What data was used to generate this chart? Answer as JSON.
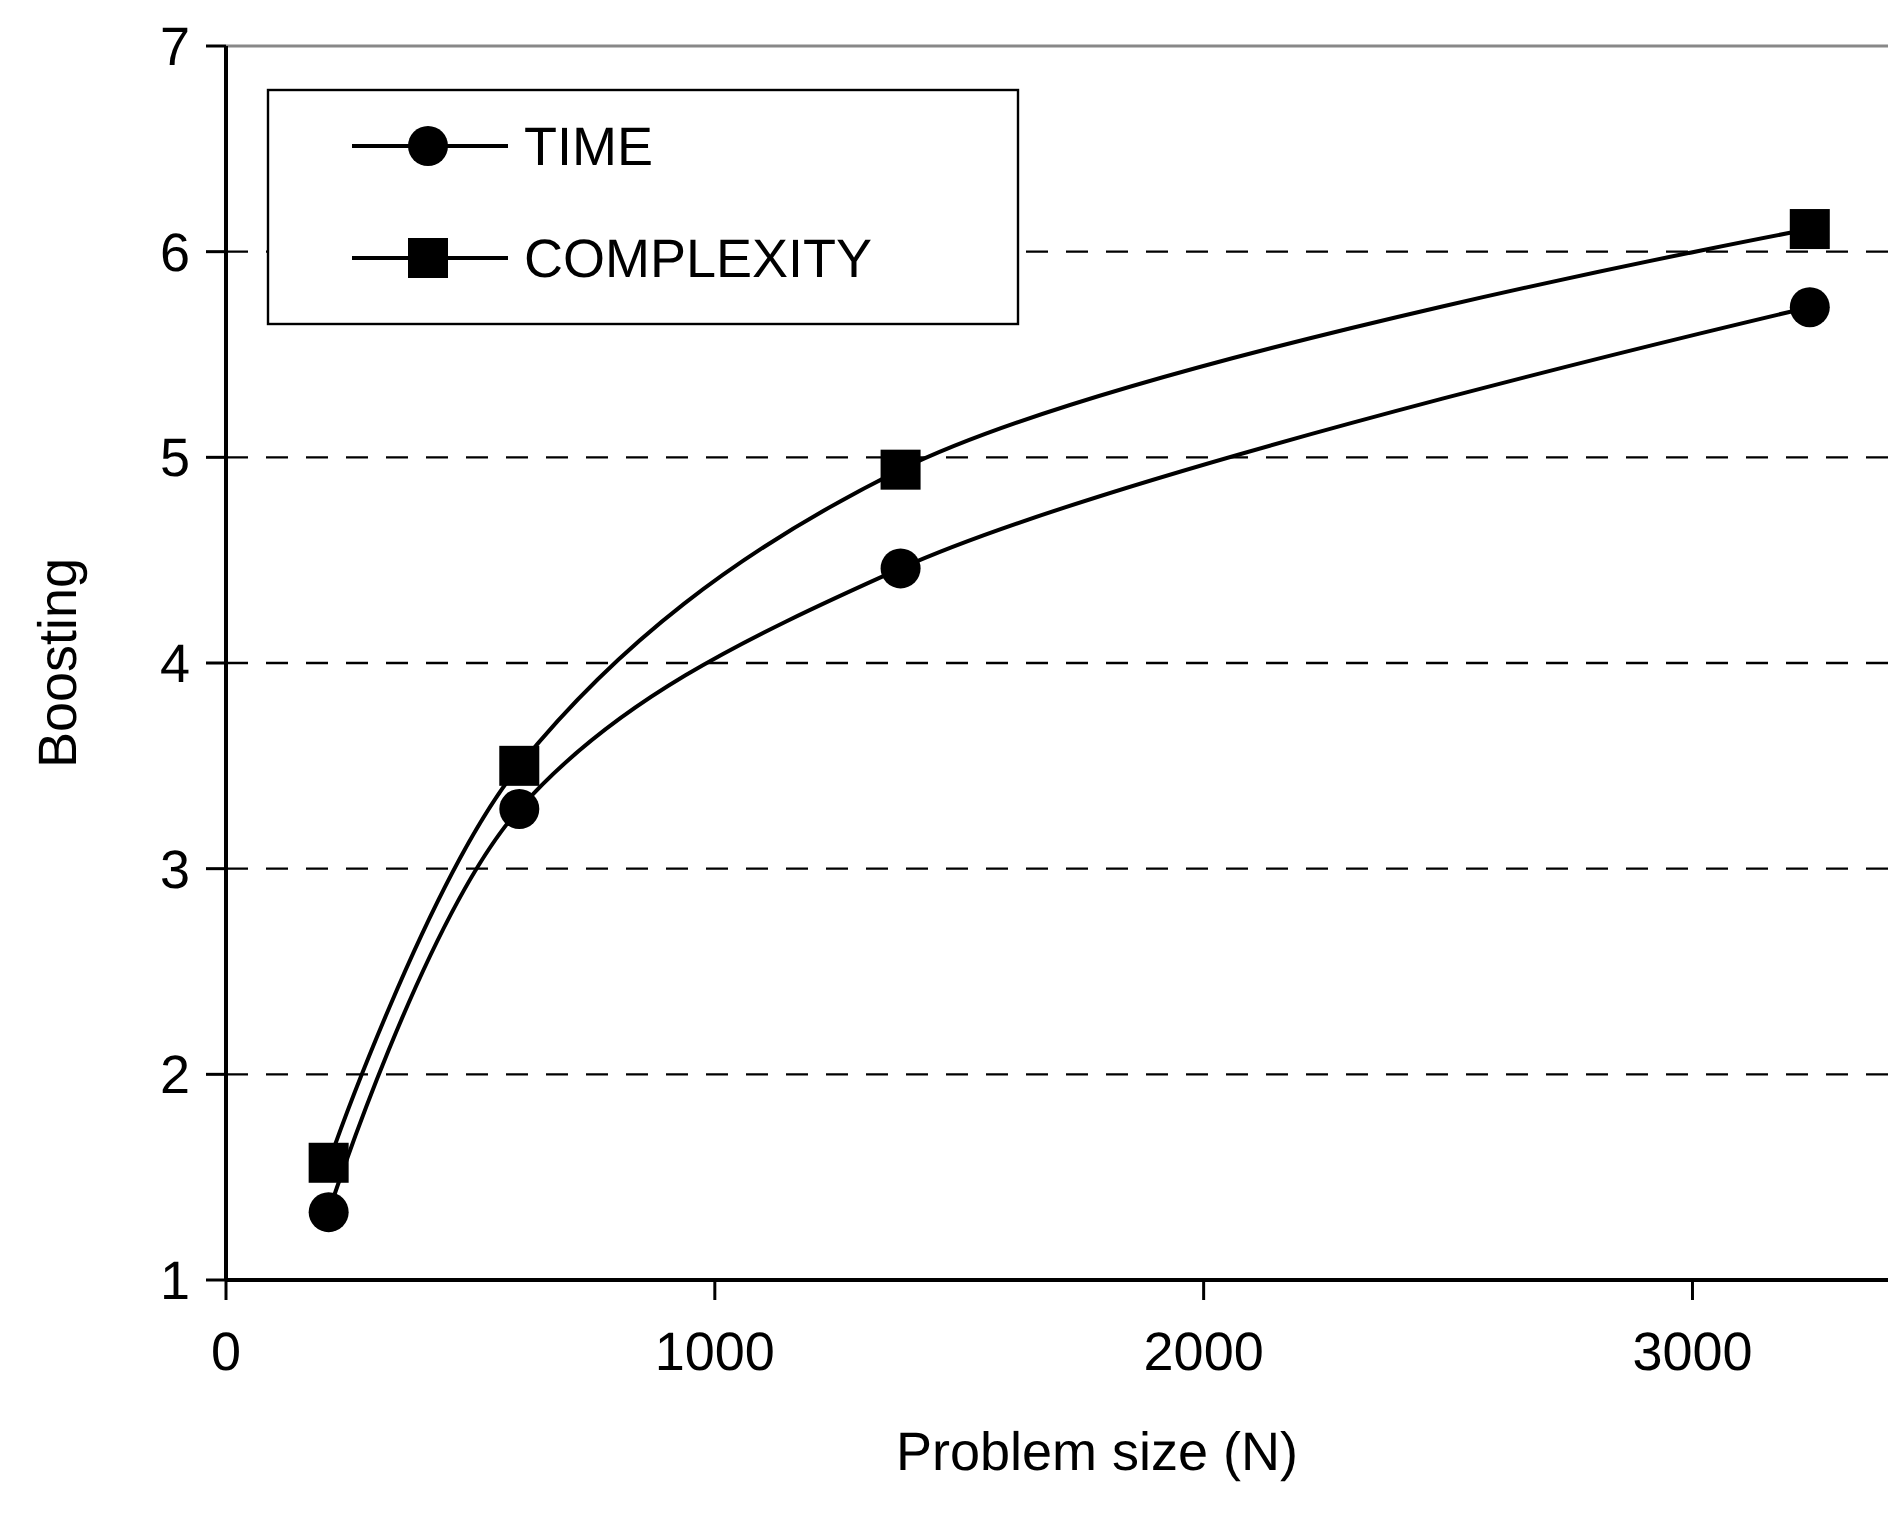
{
  "chart_data": {
    "type": "line",
    "xlabel": "Problem size (N)",
    "ylabel": "Boosting",
    "xlim": [
      0,
      3400
    ],
    "xticks": [
      0,
      1000,
      2000,
      3000
    ],
    "ylim": [
      1,
      7
    ],
    "yticks": [
      1,
      2,
      3,
      4,
      5,
      6,
      7
    ],
    "grid": "y",
    "legend": "top left",
    "line_style": "solid",
    "series": [
      {
        "name": "TIME",
        "color": "#000000",
        "marker": "circle",
        "x": [
          210,
          600,
          1380,
          3240
        ],
        "values": [
          1.33,
          3.29,
          4.46,
          5.73
        ]
      },
      {
        "name": "COMPLEXITY",
        "color": "#000000",
        "marker": "square",
        "x": [
          210,
          600,
          1380,
          3240
        ],
        "values": [
          1.57,
          3.5,
          4.94,
          6.11
        ]
      }
    ]
  }
}
